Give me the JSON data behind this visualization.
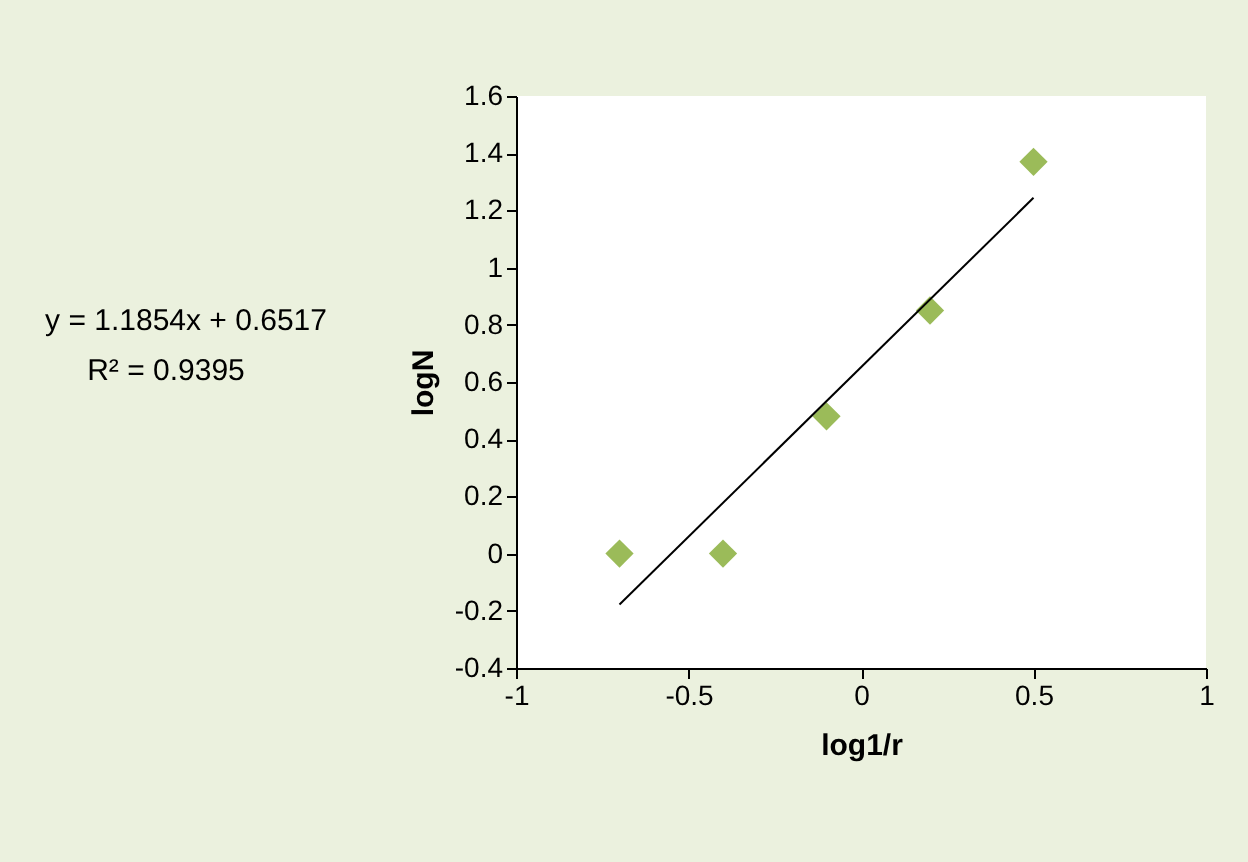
{
  "chart_data": {
    "type": "scatter",
    "xlabel": "log1/r",
    "ylabel": "logN",
    "annotations": [
      "y = 1.1854x + 0.6517",
      "R² = 0.9395"
    ],
    "series": [
      {
        "color": "#9bbb59",
        "x": [
          -0.7,
          -0.4,
          -0.1,
          0.2,
          0.5
        ],
        "values": [
          0.0,
          0.0,
          0.48,
          0.85,
          1.37
        ],
        "marker": "diamond"
      },
      {
        "type": "line",
        "color": "#000000",
        "x": [
          -0.7,
          0.5
        ],
        "values": [
          -0.178,
          1.244
        ],
        "marker": "none"
      }
    ],
    "xlim": [
      -1,
      1
    ],
    "xticks": [
      -1,
      -0.5,
      0,
      0.5,
      1
    ],
    "ylim": [
      -0.4,
      1.6
    ],
    "yticks": [
      -0.4,
      -0.2,
      0,
      0.2,
      0.4,
      0.6,
      0.8,
      1,
      1.2,
      1.4,
      1.6
    ],
    "grid": false
  }
}
